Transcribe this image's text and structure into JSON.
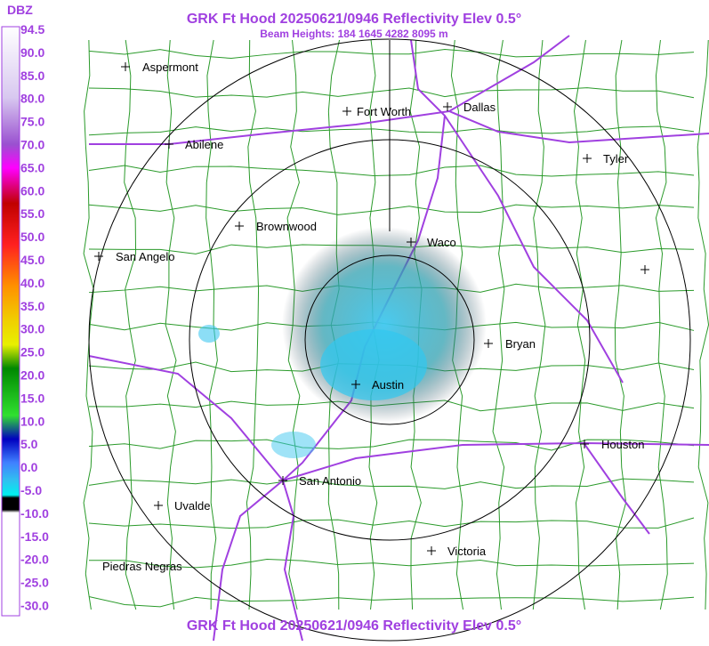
{
  "header": {
    "title": "GRK Ft Hood 20250621/0946 Reflectivity Elev 0.5°",
    "subtitle": "Beam Heights: 184 1645 4282 8095 m"
  },
  "legend": {
    "unit": "DBZ",
    "labels": [
      "94.5",
      "90.0",
      "85.0",
      "80.0",
      "75.0",
      "70.0",
      "65.0",
      "60.0",
      "55.0",
      "50.0",
      "45.0",
      "40.0",
      "35.0",
      "30.0",
      "25.0",
      "20.0",
      "15.0",
      "10.0",
      "5.0",
      "0.0",
      "-5.0",
      "-10.0",
      "-15.0",
      "-20.0",
      "-25.0",
      "-30.0"
    ]
  },
  "cities": [
    "Aspermont",
    "Abilene",
    "Fort Worth",
    "Dallas",
    "Tyler",
    "Brownwood",
    "Waco",
    "San Angelo",
    "Bryan",
    "Austin",
    "Houston",
    "San Antonio",
    "Uvalde",
    "Victoria",
    "Piedras Negras"
  ],
  "footer": "GRK Ft Hood 20250621/0946 Reflectivity Elev 0.5°"
}
